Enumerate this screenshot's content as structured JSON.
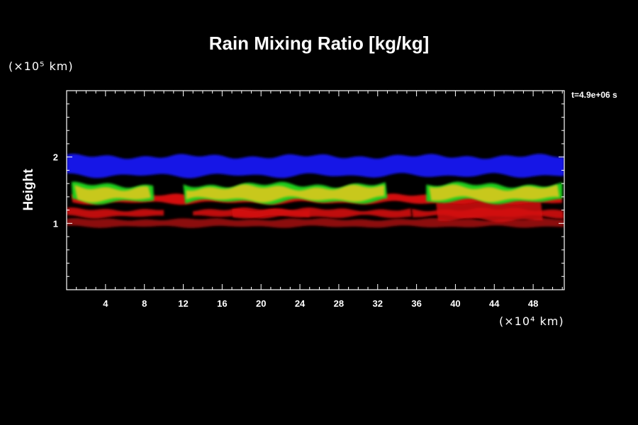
{
  "chart_data": {
    "type": "heatmap",
    "title": "Rain Mixing Ratio [kg/kg]",
    "ylabel": "Height",
    "y_unit": "(×10⁵ km)",
    "x_unit": "(×10⁴ km)",
    "time_label": "t=4.9e+06 s",
    "xlim": [
      0,
      51.2
    ],
    "ylim": [
      0,
      3
    ],
    "x_ticks": [
      4,
      8,
      12,
      16,
      20,
      24,
      28,
      32,
      36,
      40,
      44,
      48
    ],
    "y_ticks": [
      1,
      2
    ],
    "colors": {
      "blue_layer": "#1414e6",
      "yellow_layer": "#c8c81e",
      "green_edge": "#1ecc1e",
      "red_layer": "#d41010",
      "dark_red_layer": "#8c0e0e"
    },
    "layers": [
      {
        "name": "blue",
        "y_range": [
          1.7,
          2.0
        ],
        "x_range": [
          0,
          51.2
        ]
      },
      {
        "name": "yellow",
        "y_range": [
          1.35,
          1.55
        ],
        "x_segments": [
          [
            0.5,
            9
          ],
          [
            12,
            33
          ],
          [
            37,
            51
          ]
        ]
      },
      {
        "name": "red_upper",
        "y_range": [
          1.3,
          1.4
        ],
        "x_range": [
          0,
          51.2
        ]
      },
      {
        "name": "red_middle",
        "y_range": [
          1.1,
          1.2
        ],
        "x_range": [
          0,
          51.2
        ]
      },
      {
        "name": "dark_red_lower",
        "y_range": [
          0.95,
          1.05
        ],
        "x_range": [
          0,
          51.2
        ]
      }
    ]
  }
}
